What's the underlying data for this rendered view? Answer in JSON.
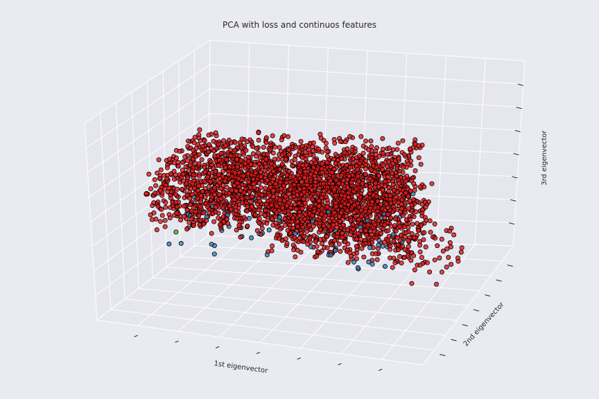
{
  "chart_data": {
    "type": "scatter",
    "projection": "3d",
    "title": "PCA with loss and continuos features",
    "xlabel": "1st eigenvector",
    "ylabel": "2nd eigenvector",
    "zlabel": "3rd eigenvector",
    "grid": true,
    "tick_labels_visible": false,
    "pane_color": "#e6e6ee",
    "background": "#eaeaf2",
    "marker_edge_color": "#000000",
    "series": [
      {
        "color": "#e41a1c",
        "clusters": [
          {
            "x": [
              -0.85,
              0.55
            ],
            "y": [
              -0.5,
              0.5
            ],
            "z": [
              -0.3,
              0.35
            ],
            "count": 2200
          },
          {
            "x": [
              -0.2,
              0.7
            ],
            "y": [
              -0.3,
              0.2
            ],
            "z": [
              -0.55,
              0.1
            ],
            "count": 700
          },
          {
            "x": [
              0.5,
              0.95
            ],
            "y": [
              -0.3,
              0.2
            ],
            "z": [
              -0.7,
              -0.2
            ],
            "count": 60
          }
        ]
      },
      {
        "color": "#377eb8",
        "clusters": [
          {
            "x": [
              -0.8,
              0.6
            ],
            "y": [
              -0.5,
              0.4
            ],
            "z": [
              -0.55,
              -0.05
            ],
            "count": 90
          }
        ]
      },
      {
        "color": "#4daf4a",
        "clusters": [
          {
            "points": [
              [
                -0.72,
                -0.35,
                -0.35
              ],
              [
                0.62,
                0.05,
                -0.58
              ]
            ]
          }
        ]
      }
    ]
  }
}
